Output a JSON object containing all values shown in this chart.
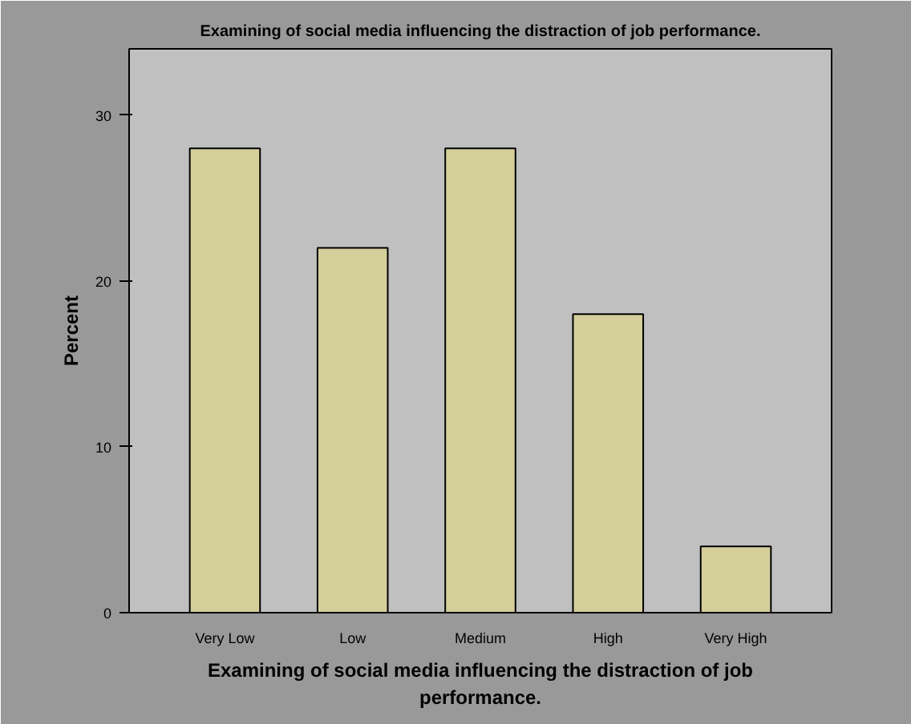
{
  "chart_data": {
    "type": "bar",
    "title": "Examining of social media influencing the distraction of job performance.",
    "xlabel": "Examining of social media influencing the distraction of job\nperformance.",
    "ylabel": "Percent",
    "categories": [
      "Very Low",
      "Low",
      "Medium",
      "High",
      "Very High"
    ],
    "values": [
      28,
      22,
      28,
      18,
      4
    ],
    "color": "#d4cf9b",
    "ylim": [
      0,
      34
    ],
    "yticks": [
      0,
      10,
      20,
      30
    ],
    "grid": false
  }
}
